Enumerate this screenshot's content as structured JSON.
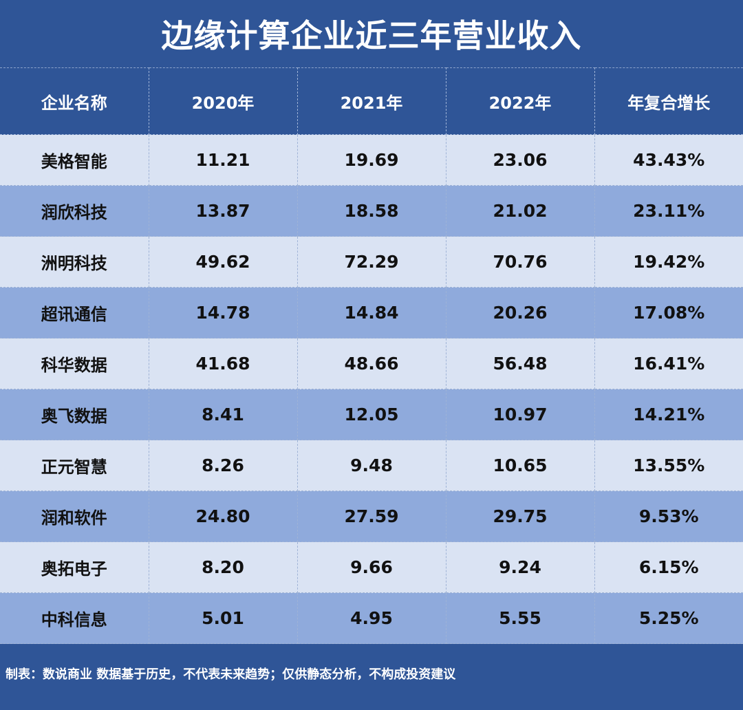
{
  "title": "边缘计算企业近三年营业收入",
  "table": {
    "headers": [
      "企业名称",
      "2020年",
      "2021年",
      "2022年",
      "年复合增长"
    ],
    "rows": [
      [
        "美格智能",
        "11.21",
        "19.69",
        "23.06",
        "43.43%"
      ],
      [
        "润欣科技",
        "13.87",
        "18.58",
        "21.02",
        "23.11%"
      ],
      [
        "洲明科技",
        "49.62",
        "72.29",
        "70.76",
        "19.42%"
      ],
      [
        "超讯通信",
        "14.78",
        "14.84",
        "20.26",
        "17.08%"
      ],
      [
        "科华数据",
        "41.68",
        "48.66",
        "56.48",
        "16.41%"
      ],
      [
        "奥飞数据",
        "8.41",
        "12.05",
        "10.97",
        "14.21%"
      ],
      [
        "正元智慧",
        "8.26",
        "9.48",
        "10.65",
        "13.55%"
      ],
      [
        "润和软件",
        "24.80",
        "27.59",
        "29.75",
        "9.53%"
      ],
      [
        "奥拓电子",
        "8.20",
        "9.66",
        "9.24",
        "6.15%"
      ],
      [
        "中科信息",
        "5.01",
        "4.95",
        "5.55",
        "5.25%"
      ]
    ]
  },
  "footer": "制表：数说商业 数据基于历史，不代表未来趋势；仅供静态分析，不构成投资建议",
  "colors": {
    "background": "#2f5597",
    "row_light": "#dae3f3",
    "row_dark": "#8faadc"
  }
}
